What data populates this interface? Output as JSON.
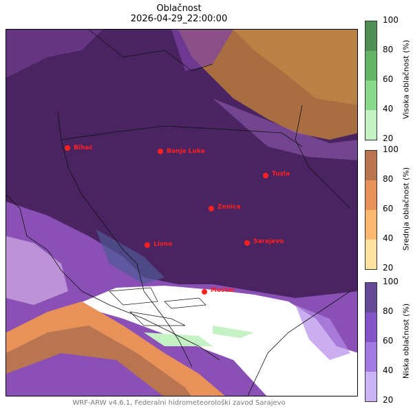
{
  "title": "Oblačnost",
  "timestamp": "2026-04-29_22:00:00",
  "footer": "WRF-ARW v4.6.1, Federalni hidrometeorološki zavod Sarajevo",
  "cities": [
    {
      "name": "Bihać"
    },
    {
      "name": "Banja Luka"
    },
    {
      "name": "Tuzla"
    },
    {
      "name": "Zenica"
    },
    {
      "name": "Livno"
    },
    {
      "name": "Sarajevo"
    },
    {
      "name": "Mostar"
    }
  ],
  "colorbars": [
    {
      "label": "Visoka oblačnost (%)",
      "ticks": [
        "100",
        "80",
        "60",
        "40",
        "20"
      ],
      "colors": [
        "#4f8f55",
        "#64b467",
        "#8ad98a",
        "#c5f2c4"
      ]
    },
    {
      "label": "Srednja oblačnost (%)",
      "ticks": [
        "100",
        "80",
        "60",
        "40",
        "20"
      ],
      "colors": [
        "#b87550",
        "#e8925a",
        "#fbb970",
        "#fee3a0"
      ]
    },
    {
      "label": "Niska oblačnost (%)",
      "ticks": [
        "100",
        "80",
        "60",
        "40",
        "20"
      ],
      "colors": [
        "#654a98",
        "#8256c8",
        "#a37ae2",
        "#cbb3f8"
      ]
    }
  ],
  "city_color": "#ff2020"
}
